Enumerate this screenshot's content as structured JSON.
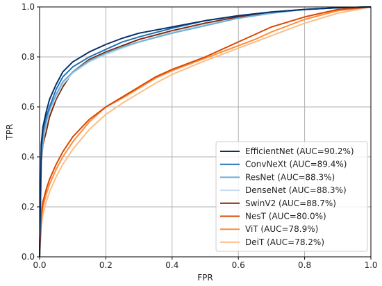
{
  "chart_data": {
    "type": "line",
    "title": "",
    "xlabel": "FPR",
    "ylabel": "TPR",
    "xlim": [
      0.0,
      1.0
    ],
    "ylim": [
      0.0,
      1.0
    ],
    "xticks": [
      "0.0",
      "0.2",
      "0.4",
      "0.6",
      "0.8",
      "1.0"
    ],
    "yticks": [
      "0.0",
      "0.2",
      "0.4",
      "0.6",
      "0.8",
      "1.0"
    ],
    "grid": true,
    "legend_position": "lower-right",
    "series": [
      {
        "name": "EfficientNet (AUC=90.2%)",
        "color": "#08306b",
        "x": [
          0,
          0.005,
          0.01,
          0.02,
          0.03,
          0.05,
          0.07,
          0.1,
          0.15,
          0.2,
          0.25,
          0.3,
          0.4,
          0.5,
          0.6,
          0.7,
          0.8,
          0.9,
          1.0
        ],
        "y": [
          0,
          0.45,
          0.52,
          0.58,
          0.63,
          0.69,
          0.74,
          0.78,
          0.82,
          0.85,
          0.875,
          0.895,
          0.92,
          0.945,
          0.965,
          0.98,
          0.99,
          0.997,
          1.0
        ]
      },
      {
        "name": "ConvNeXt (AUC=89.4%)",
        "color": "#2171b5",
        "x": [
          0,
          0.005,
          0.01,
          0.02,
          0.03,
          0.05,
          0.07,
          0.1,
          0.15,
          0.2,
          0.25,
          0.3,
          0.4,
          0.5,
          0.6,
          0.7,
          0.8,
          0.9,
          1.0
        ],
        "y": [
          0,
          0.42,
          0.5,
          0.56,
          0.6,
          0.67,
          0.72,
          0.76,
          0.8,
          0.83,
          0.86,
          0.88,
          0.915,
          0.945,
          0.965,
          0.98,
          0.99,
          0.997,
          1.0
        ]
      },
      {
        "name": "ResNet (AUC=88.3%)",
        "color": "#6baed6",
        "x": [
          0,
          0.005,
          0.01,
          0.02,
          0.03,
          0.05,
          0.07,
          0.1,
          0.15,
          0.2,
          0.25,
          0.3,
          0.4,
          0.5,
          0.6,
          0.7,
          0.8,
          0.9,
          1.0
        ],
        "y": [
          0,
          0.4,
          0.47,
          0.54,
          0.59,
          0.65,
          0.7,
          0.74,
          0.785,
          0.815,
          0.84,
          0.86,
          0.895,
          0.925,
          0.955,
          0.975,
          0.99,
          0.997,
          1.0
        ]
      },
      {
        "name": "DenseNet (AUC=88.3%)",
        "color": "#c6dbef",
        "x": [
          0,
          0.005,
          0.01,
          0.02,
          0.03,
          0.05,
          0.07,
          0.1,
          0.15,
          0.2,
          0.25,
          0.3,
          0.4,
          0.5,
          0.6,
          0.7,
          0.8,
          0.9,
          1.0
        ],
        "y": [
          0,
          0.39,
          0.46,
          0.53,
          0.58,
          0.64,
          0.69,
          0.735,
          0.78,
          0.81,
          0.835,
          0.86,
          0.9,
          0.93,
          0.955,
          0.975,
          0.99,
          0.997,
          1.0
        ]
      },
      {
        "name": "SwinV2 (AUC=88.7%)",
        "color": "#7f2704",
        "x": [
          0,
          0.005,
          0.01,
          0.02,
          0.03,
          0.05,
          0.07,
          0.1,
          0.15,
          0.2,
          0.25,
          0.3,
          0.4,
          0.5,
          0.6,
          0.7,
          0.8,
          0.9,
          1.0
        ],
        "y": [
          0,
          0.38,
          0.45,
          0.5,
          0.56,
          0.63,
          0.68,
          0.74,
          0.79,
          0.82,
          0.845,
          0.87,
          0.905,
          0.935,
          0.96,
          0.978,
          0.99,
          0.997,
          1.0
        ]
      },
      {
        "name": "NesT (AUC=80.0%)",
        "color": "#d94801",
        "x": [
          0,
          0.005,
          0.01,
          0.02,
          0.03,
          0.05,
          0.07,
          0.1,
          0.15,
          0.2,
          0.25,
          0.3,
          0.35,
          0.4,
          0.5,
          0.55,
          0.6,
          0.65,
          0.7,
          0.8,
          0.9,
          1.0
        ],
        "y": [
          0,
          0.17,
          0.22,
          0.27,
          0.31,
          0.37,
          0.42,
          0.48,
          0.55,
          0.6,
          0.64,
          0.68,
          0.72,
          0.75,
          0.8,
          0.83,
          0.86,
          0.89,
          0.92,
          0.96,
          0.99,
          1.0
        ]
      },
      {
        "name": "ViT (AUC=78.9%)",
        "color": "#fd8d3c",
        "x": [
          0,
          0.005,
          0.01,
          0.02,
          0.03,
          0.05,
          0.07,
          0.1,
          0.15,
          0.2,
          0.25,
          0.3,
          0.35,
          0.4,
          0.5,
          0.55,
          0.6,
          0.65,
          0.7,
          0.8,
          0.9,
          1.0
        ],
        "y": [
          0,
          0.15,
          0.2,
          0.25,
          0.29,
          0.35,
          0.4,
          0.46,
          0.54,
          0.6,
          0.635,
          0.675,
          0.715,
          0.745,
          0.795,
          0.82,
          0.845,
          0.87,
          0.9,
          0.95,
          0.985,
          1.0
        ]
      },
      {
        "name": "DeiT (AUC=78.2%)",
        "color": "#fdbe85",
        "x": [
          0,
          0.005,
          0.01,
          0.02,
          0.03,
          0.05,
          0.07,
          0.1,
          0.15,
          0.2,
          0.25,
          0.3,
          0.35,
          0.4,
          0.5,
          0.55,
          0.6,
          0.65,
          0.7,
          0.8,
          0.9,
          1.0
        ],
        "y": [
          0,
          0.12,
          0.17,
          0.22,
          0.26,
          0.32,
          0.37,
          0.43,
          0.51,
          0.57,
          0.615,
          0.655,
          0.695,
          0.73,
          0.785,
          0.81,
          0.835,
          0.86,
          0.885,
          0.935,
          0.975,
          1.0
        ]
      }
    ]
  }
}
